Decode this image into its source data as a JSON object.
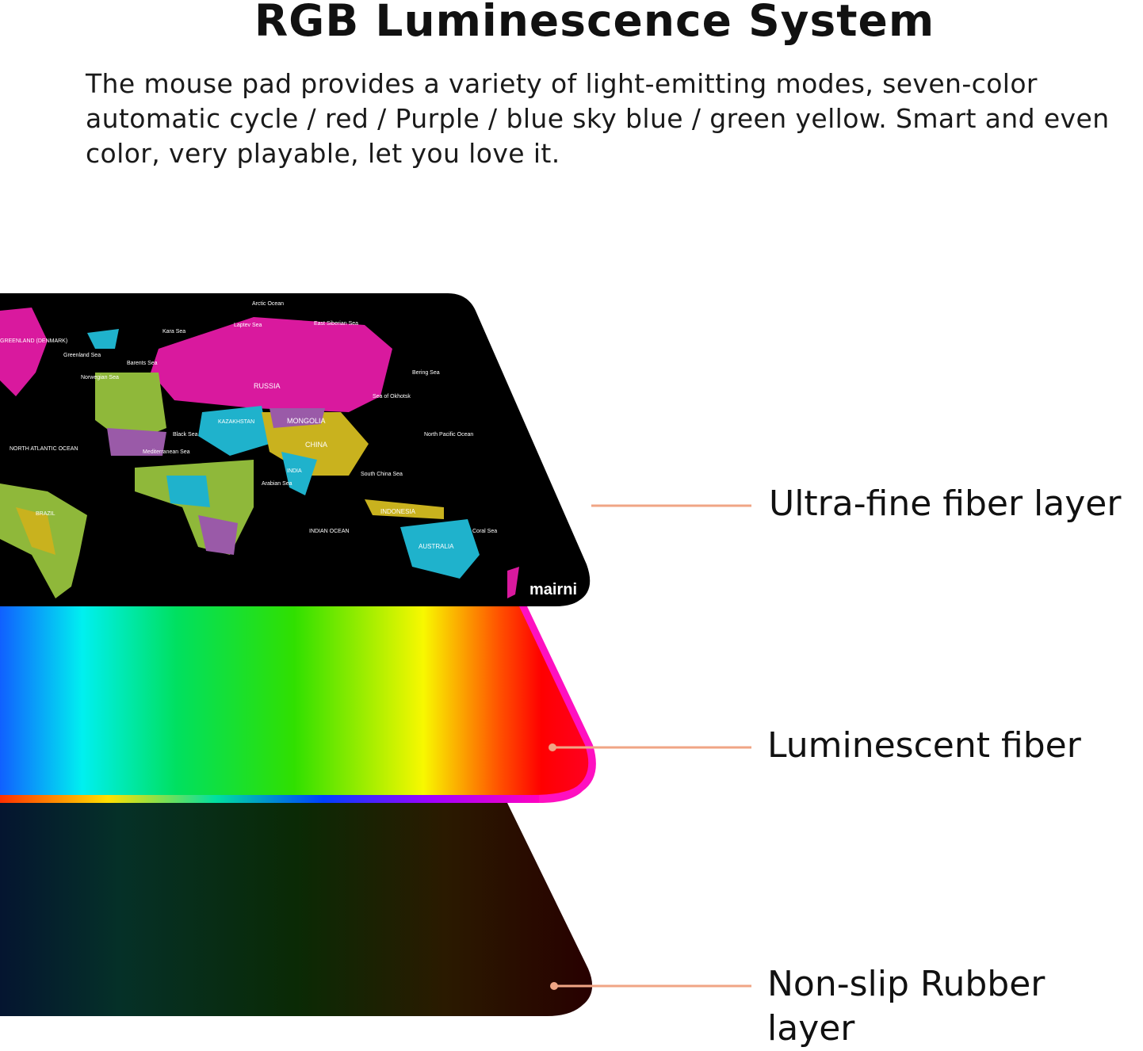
{
  "header": {
    "title": "RGB Luminescence System",
    "description": "The mouse pad provides a variety of light-emitting modes, seven-color automatic cycle / red / Purple / blue sky blue / green yellow. Smart and even color, very playable, let you love it."
  },
  "layers": [
    {
      "label": "Ultra-fine fiber layer"
    },
    {
      "label": "Luminescent fiber"
    },
    {
      "label": "Non-slip Rubber layer"
    }
  ],
  "callout_color": "#f0a585",
  "mousepad": {
    "brand_logo": "mairni",
    "map_labels": [
      "Arctic Ocean",
      "GREENLAND (DENMARK)",
      "Greenland Sea",
      "Kara Sea",
      "Laptev Sea",
      "East Siberian Sea",
      "Barents Sea",
      "Norwegian Sea",
      "RUSSIA",
      "Bering Sea",
      "Sea of Okhotsk",
      "KAZAKHSTAN",
      "MONGOLIA",
      "CHINA",
      "Black Sea",
      "Mediterranean Sea",
      "INDIA",
      "Arabian Sea",
      "South China Sea",
      "North Pacific Ocean",
      "NORTH ATLANTIC OCEAN",
      "INDIAN OCEAN",
      "INDONESIA",
      "AUSTRALIA",
      "Coral Sea",
      "BRAZIL"
    ],
    "map_colors": {
      "magenta": "#d9199e",
      "cyan": "#1fb2cc",
      "yellow": "#c9b21e",
      "green": "#8fb83a",
      "purple": "#9a5aa8"
    }
  }
}
